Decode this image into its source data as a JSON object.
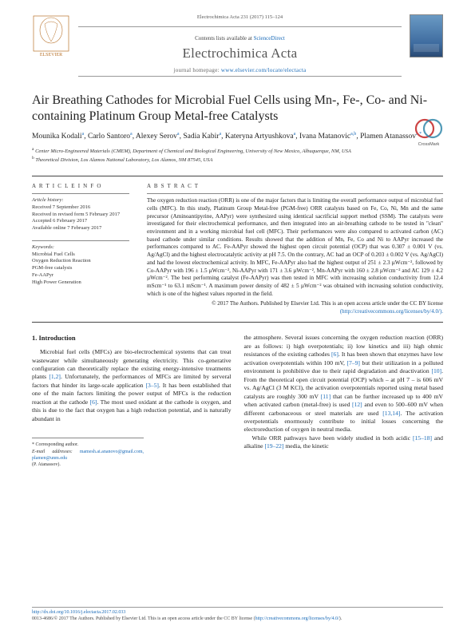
{
  "header": {
    "citation": "Electrochimica Acta 231 (2017) 115–124",
    "contents_prefix": "Contents lists available at ",
    "contents_link": "ScienceDirect",
    "journal_title": "Electrochimica Acta",
    "homepage_label": "journal homepage: ",
    "homepage_url": "www.elsevier.com/locate/electacta"
  },
  "article": {
    "title": "Air Breathing Cathodes for Microbial Fuel Cells using Mn-, Fe-, Co- and Ni-containing Platinum Group Metal-free Catalysts",
    "crossmark_label": "CrossMark"
  },
  "authors_html": "Mounika Kodali<sup>a</sup>, Carlo Santoro<sup>a</sup>, Alexey Serov<sup>a</sup>, Sadia Kabir<sup>a</sup>, Kateryna Artyushkova<sup>a</sup>, Ivana Matanovic<sup>a,b</sup>, Plamen Atanassov<sup>a,<span class='star'>*</span></sup>",
  "affiliations": [
    "a Center Micro-Engineered Materials (CMEM), Department of Chemical and Biological Engineering, University of New Mexico, Albuquerque, NM, USA",
    "b Theoretical Division, Los Alamos National Laboratory, Los Alamos, NM 87545, USA"
  ],
  "info": {
    "head": "A R T I C L E  I N F O",
    "history_label": "Article history:",
    "history": [
      "Received 7 September 2016",
      "Received in revised form 5 February 2017",
      "Accepted 6 February 2017",
      "Available online 7 February 2017"
    ],
    "keywords_label": "Keywords:",
    "keywords": [
      "Microbial Fuel Cells",
      "Oxygen Reduction Reaction",
      "PGM-free catalysis",
      "Fe-AAPyr",
      "High Power Generation"
    ]
  },
  "abstract": {
    "head": "A B S T R A C T",
    "text": "The oxygen reduction reaction (ORR) is one of the major factors that is limiting the overall performance output of microbial fuel cells (MFC). In this study, Platinum Group Metal-free (PGM-free) ORR catalysts based on Fe, Co, Ni, Mn and the same precursor (Aminoantipyrine, AAPyr) were synthesized using identical sacrificial support method (SSM). The catalysts were investigated for their electrochemical performance, and then integrated into an air-breathing cathode to be tested in \"clean\" environment and in a working microbial fuel cell (MFC). Their performances were also compared to activated carbon (AC) based cathode under similar conditions. Results showed that the addition of Mn, Fe, Co and Ni to AAPyr increased the performances compared to AC. Fe-AAPyr showed the highest open circuit potential (OCP) that was 0.307 ± 0.001 V (vs. Ag/AgCl) and the highest electrocatalytic activity at pH 7.5. On the contrary, AC had an OCP of 0.203 ± 0.002 V (vs. Ag/AgCl) and had the lowest electrochemical activity. In MFC, Fe-AAPyr also had the highest output of 251 ± 2.3 µWcm⁻², followed by Co-AAPyr with 196 ± 1.5 µWcm⁻², Ni-AAPyr with 171 ± 3.6 µWcm⁻², Mn-AAPyr with 160 ± 2.8 µWcm⁻² and AC 129 ± 4.2 µWcm⁻². The best performing catalyst (Fe-AAPyr) was then tested in MFC with increasing solution conductivity from 12.4 mScm⁻¹ to 63.1 mScm⁻¹. A maximum power density of 482 ± 5 µWcm⁻² was obtained with increasing solution conductivity, which is one of the highest values reported in the field.",
    "copyright": "© 2017 The Authors. Published by Elsevier Ltd. This is an open access article under the CC BY license",
    "license_url": "(http://creativecommons.org/licenses/by/4.0/)."
  },
  "body": {
    "section_num": "1.",
    "section_title": "Introduction",
    "col1": "Microbial fuel cells (MFCs) are bio-electrochemical systems that can treat wastewater while simultaneously generating electricity. This co-generative configuration can theoretically replace the existing energy-intensive treatments plants [1,2]. Unfortunately, the performances of MFCs are limited by serveral factors that hinder its large-scale application [3–5]. It has been established that one of the main factors limiting the power output of MFCs is the reduction reaction at the cathode [6]. The most used oxidant at the cathode is oxygen, and this is due to the fact that oxygen has a high reduction potential, and is naturally abundant in",
    "col2a": "the atmosphere. Several issues concerning the oxygen reduction reaction (ORR) are as follows: i) high overpotentials; ii) low kinetics and iii) high ohmic resistances of the existing cathodes [6]. It has been shown that enzymes have low activation overpotentials within 100 mV, [7–9] but their utilization in a polluted environment is prohibitive due to their rapid degradation and deactivation [10]. From the theoretical open circuit potential (OCP) which – at pH 7 – is 606 mV vs. Ag/AgCl (3 M KCl), the activation overpotentials reported using metal based catalysts are roughly 300 mV [11] that can be further increased up to 400 mV when activated carbon (metal-free) is used [12] and even to 500–600 mV when different carbonaceous or steel materials are used [13,14]. The activation overpotentials enormously contribute to initial losses concerning the electroreduction of oxygen in neutral media.",
    "col2b": "While ORR pathways have been widely studied in both acidic [15–18] and alkaline [19–22] media, the kinetic"
  },
  "corr": {
    "label": "* Corresponding author.",
    "email_label": "E-mail addresses:",
    "emails": "mamesh.ai.ananovo@gmail.com, plamen@unm.edu",
    "name": "(P. Atanassov)."
  },
  "footer": {
    "doi": "http://dx.doi.org/10.1016/j.electacta.2017.02.033",
    "line": "0013-4686/© 2017 The Authors. Published by Elsevier Ltd. This is an open access article under the CC BY license (",
    "license": "http://creativecommons.org/licenses/by/4.0/",
    "close": ")."
  },
  "colors": {
    "link": "#1a6bb8",
    "text": "#222222",
    "rule": "#444444"
  }
}
